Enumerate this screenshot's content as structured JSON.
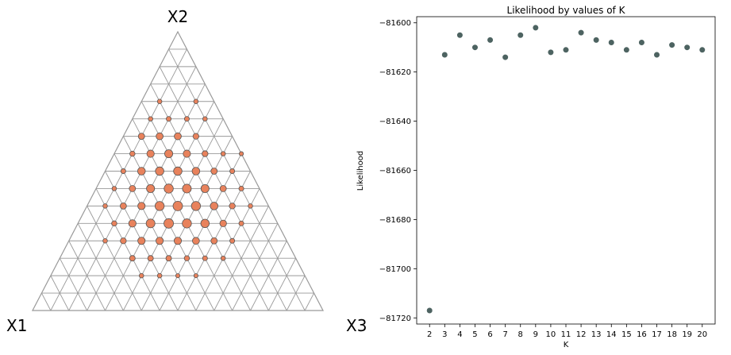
{
  "chart_data": [
    {
      "type": "scatter",
      "subtype": "ternary-grid",
      "corner_labels": {
        "left": "X1",
        "top": "X2",
        "right": "X3"
      },
      "grid_divisions": 16,
      "grid_color": "#999999",
      "series": [
        {
          "color": "#e8825c",
          "edge": "#555555",
          "points": [
            {
              "row": 4,
              "col": 1,
              "s": 0.3
            },
            {
              "row": 4,
              "col": 3,
              "s": 0.3
            },
            {
              "row": 5,
              "col": 1,
              "s": 0.3
            },
            {
              "row": 5,
              "col": 2,
              "s": 0.35
            },
            {
              "row": 5,
              "col": 3,
              "s": 0.35
            },
            {
              "row": 5,
              "col": 4,
              "s": 0.3
            },
            {
              "row": 6,
              "col": 1,
              "s": 0.55
            },
            {
              "row": 6,
              "col": 2,
              "s": 0.65
            },
            {
              "row": 6,
              "col": 3,
              "s": 0.65
            },
            {
              "row": 6,
              "col": 4,
              "s": 0.5
            },
            {
              "row": 7,
              "col": 1,
              "s": 0.4
            },
            {
              "row": 7,
              "col": 2,
              "s": 0.7
            },
            {
              "row": 7,
              "col": 3,
              "s": 0.8
            },
            {
              "row": 7,
              "col": 4,
              "s": 0.7
            },
            {
              "row": 7,
              "col": 5,
              "s": 0.5
            },
            {
              "row": 7,
              "col": 6,
              "s": 0.3
            },
            {
              "row": 7,
              "col": 7,
              "s": 0.25
            },
            {
              "row": 8,
              "col": 1,
              "s": 0.35
            },
            {
              "row": 8,
              "col": 2,
              "s": 0.75
            },
            {
              "row": 8,
              "col": 3,
              "s": 0.85
            },
            {
              "row": 8,
              "col": 4,
              "s": 0.85
            },
            {
              "row": 8,
              "col": 5,
              "s": 0.75
            },
            {
              "row": 8,
              "col": 6,
              "s": 0.55
            },
            {
              "row": 8,
              "col": 7,
              "s": 0.35
            },
            {
              "row": 9,
              "col": 1,
              "s": 0.3
            },
            {
              "row": 9,
              "col": 2,
              "s": 0.55
            },
            {
              "row": 9,
              "col": 3,
              "s": 0.8
            },
            {
              "row": 9,
              "col": 4,
              "s": 0.95
            },
            {
              "row": 9,
              "col": 5,
              "s": 0.9
            },
            {
              "row": 9,
              "col": 6,
              "s": 0.8
            },
            {
              "row": 9,
              "col": 7,
              "s": 0.55
            },
            {
              "row": 9,
              "col": 8,
              "s": 0.35
            },
            {
              "row": 10,
              "col": 1,
              "s": 0.3
            },
            {
              "row": 10,
              "col": 2,
              "s": 0.55
            },
            {
              "row": 10,
              "col": 3,
              "s": 0.7
            },
            {
              "row": 10,
              "col": 4,
              "s": 0.95
            },
            {
              "row": 10,
              "col": 5,
              "s": 1.0
            },
            {
              "row": 10,
              "col": 6,
              "s": 0.95
            },
            {
              "row": 10,
              "col": 7,
              "s": 0.75
            },
            {
              "row": 10,
              "col": 8,
              "s": 0.5
            },
            {
              "row": 10,
              "col": 9,
              "s": 0.3
            },
            {
              "row": 11,
              "col": 2,
              "s": 0.4
            },
            {
              "row": 11,
              "col": 3,
              "s": 0.7
            },
            {
              "row": 11,
              "col": 4,
              "s": 0.9
            },
            {
              "row": 11,
              "col": 5,
              "s": 1.0
            },
            {
              "row": 11,
              "col": 6,
              "s": 0.95
            },
            {
              "row": 11,
              "col": 7,
              "s": 0.85
            },
            {
              "row": 11,
              "col": 8,
              "s": 0.6
            },
            {
              "row": 11,
              "col": 9,
              "s": 0.35
            },
            {
              "row": 12,
              "col": 2,
              "s": 0.3
            },
            {
              "row": 12,
              "col": 3,
              "s": 0.5
            },
            {
              "row": 12,
              "col": 4,
              "s": 0.7
            },
            {
              "row": 12,
              "col": 5,
              "s": 0.7
            },
            {
              "row": 12,
              "col": 6,
              "s": 0.7
            },
            {
              "row": 12,
              "col": 7,
              "s": 0.65
            },
            {
              "row": 12,
              "col": 8,
              "s": 0.55
            },
            {
              "row": 12,
              "col": 9,
              "s": 0.35
            },
            {
              "row": 13,
              "col": 4,
              "s": 0.45
            },
            {
              "row": 13,
              "col": 5,
              "s": 0.45
            },
            {
              "row": 13,
              "col": 6,
              "s": 0.45
            },
            {
              "row": 13,
              "col": 7,
              "s": 0.4
            },
            {
              "row": 13,
              "col": 8,
              "s": 0.35
            },
            {
              "row": 13,
              "col": 9,
              "s": 0.3
            },
            {
              "row": 14,
              "col": 5,
              "s": 0.3
            },
            {
              "row": 14,
              "col": 6,
              "s": 0.3
            },
            {
              "row": 14,
              "col": 7,
              "s": 0.25
            },
            {
              "row": 14,
              "col": 8,
              "s": 0.25
            }
          ]
        }
      ]
    },
    {
      "type": "scatter",
      "title": "Likelihood by values of K",
      "xlabel": "K",
      "ylabel": "Likelihood",
      "x": [
        2,
        3,
        4,
        5,
        6,
        7,
        8,
        9,
        10,
        11,
        12,
        13,
        14,
        15,
        16,
        17,
        18,
        19,
        20
      ],
      "y": [
        -81717,
        -81613,
        -81605,
        -81610,
        -81607,
        -81614,
        -81605,
        -81602,
        -81612,
        -81611,
        -81604,
        -81607,
        -81608,
        -81611,
        -81608,
        -81613,
        -81609,
        -81610,
        -81611
      ],
      "xlim": [
        1.15,
        20.85
      ],
      "ylim": [
        -81722.5,
        -81597.5
      ],
      "yticks": [
        -81600,
        -81620,
        -81640,
        -81660,
        -81680,
        -81700,
        -81720
      ],
      "ytick_labels": [
        "−81600",
        "−81620",
        "−81640",
        "−81660",
        "−81680",
        "−81700",
        "−81720"
      ],
      "xticks": [
        2,
        3,
        4,
        5,
        6,
        7,
        8,
        9,
        10,
        11,
        12,
        13,
        14,
        15,
        16,
        17,
        18,
        19,
        20
      ],
      "xtick_labels": [
        "2",
        "3",
        "4",
        "5",
        "6",
        "7",
        "8",
        "9",
        "10",
        "11",
        "12",
        "13",
        "14",
        "15",
        "16",
        "17",
        "18",
        "19",
        "20"
      ],
      "marker_color": "#4d6361",
      "grid": false
    }
  ]
}
